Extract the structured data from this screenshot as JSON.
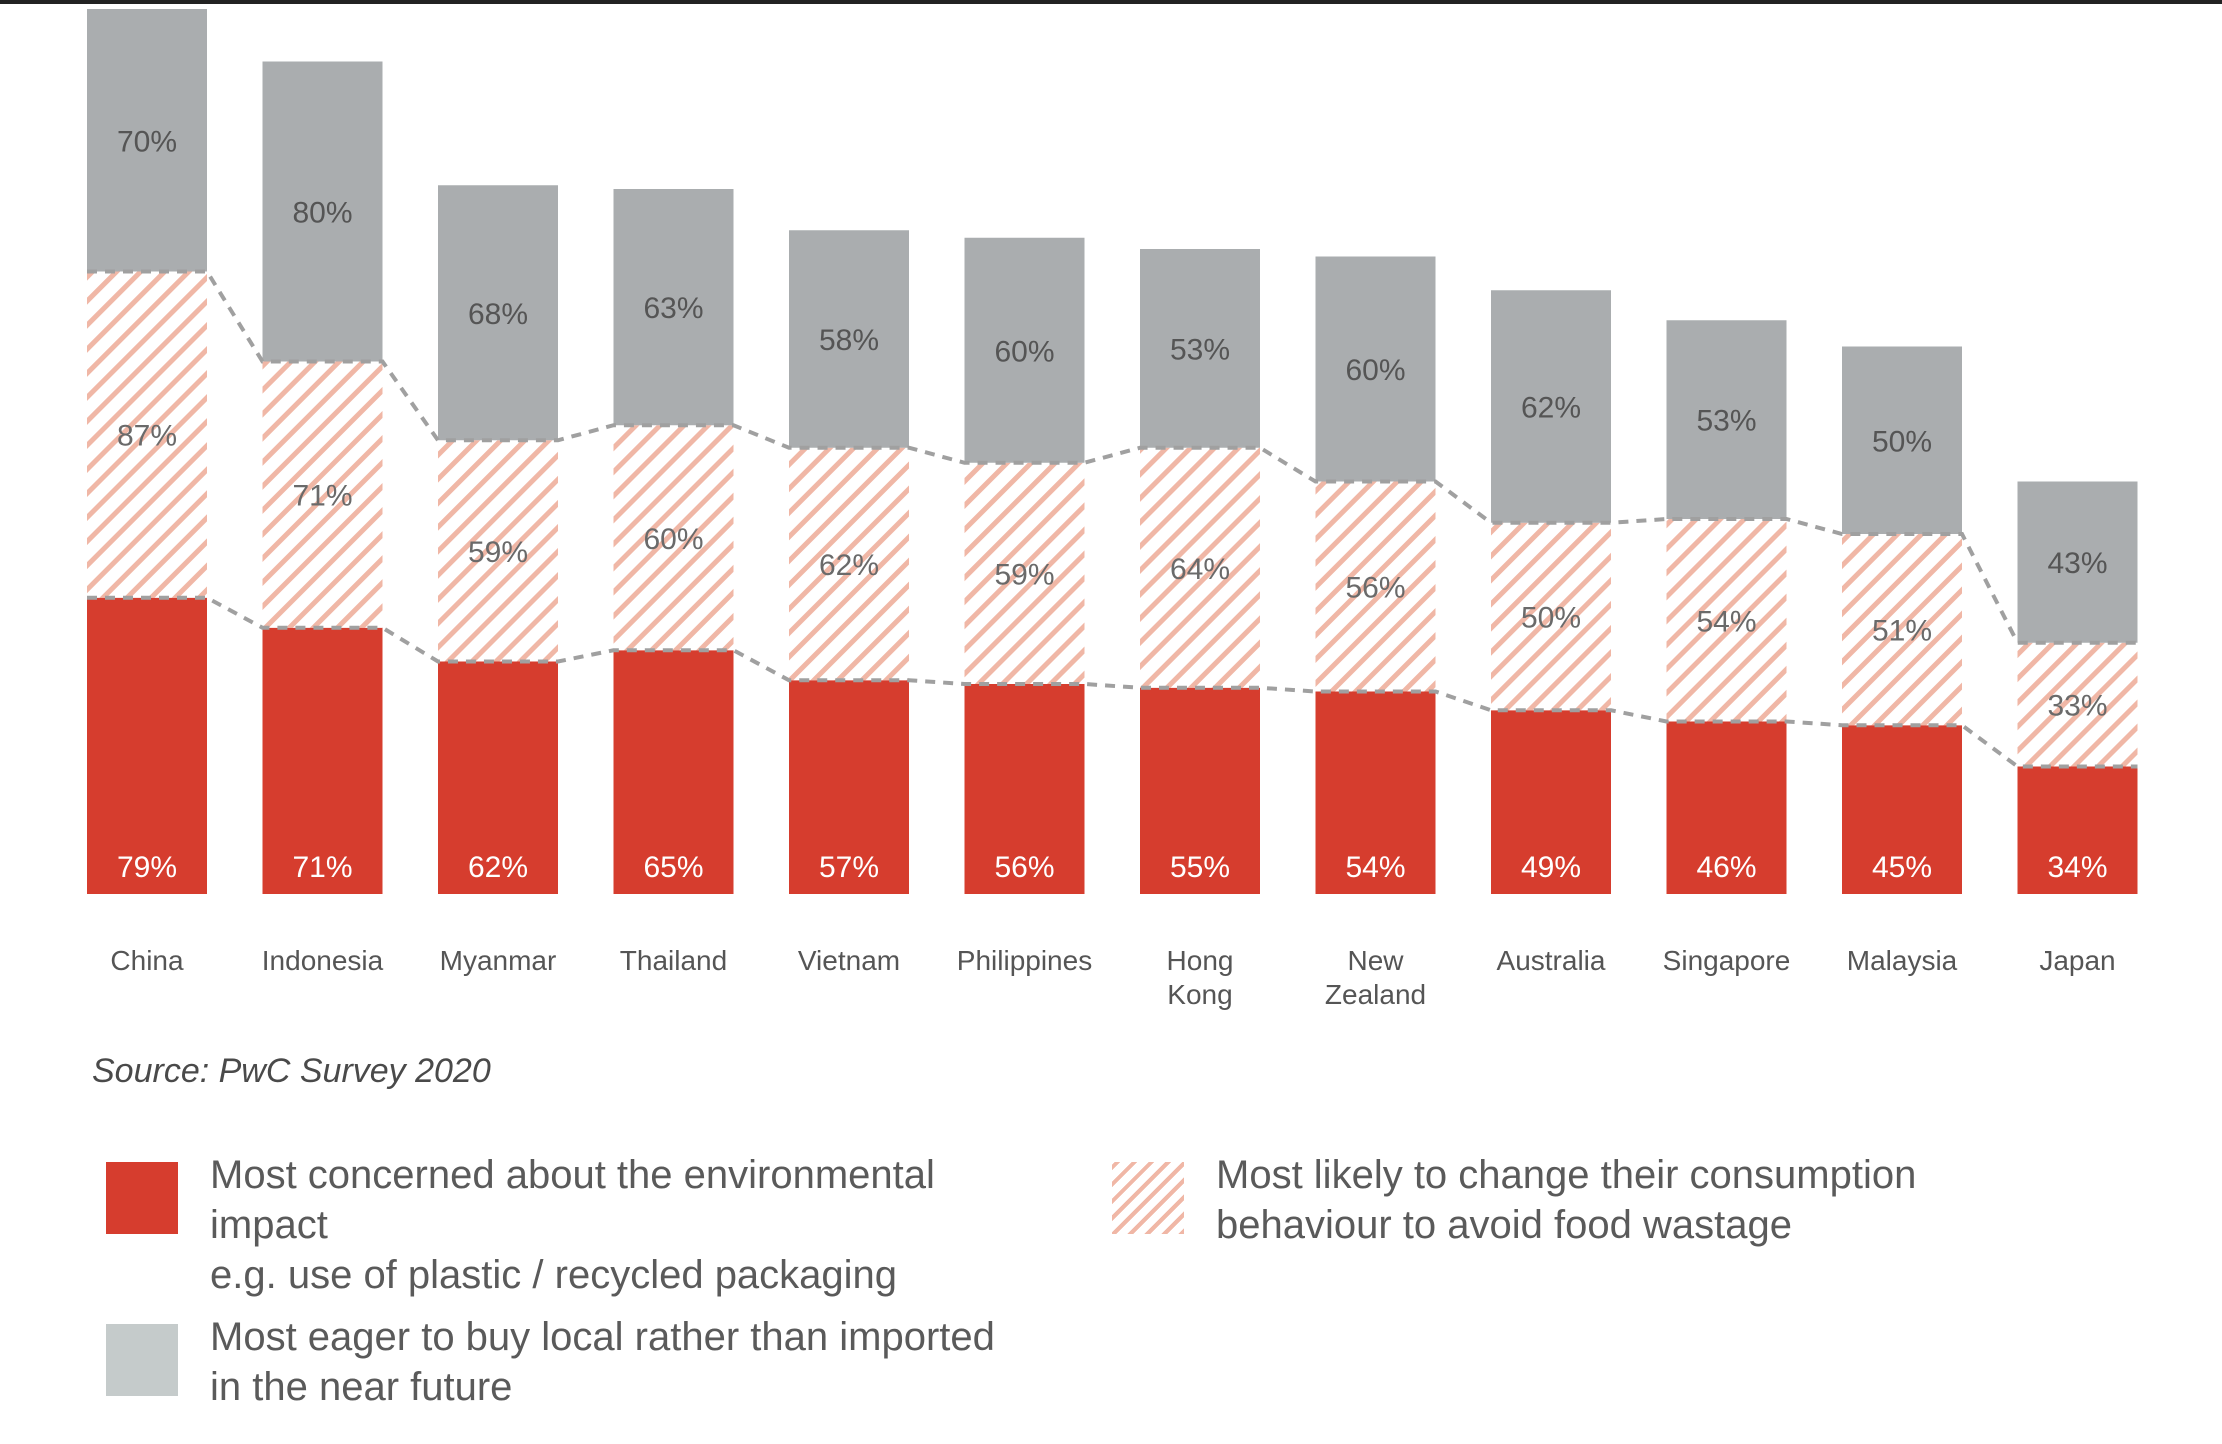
{
  "chart_data": {
    "type": "bar",
    "stacked": true,
    "categories": [
      "China",
      "Indonesia",
      "Myanmar",
      "Thailand",
      "Vietnam",
      "Philippines",
      "Hong Kong",
      "New Zealand",
      "Australia",
      "Singapore",
      "Malaysia",
      "Japan"
    ],
    "series": [
      {
        "name": "Most concerned about the environmental impact e.g. use of plastic / recycled packaging",
        "key": "concerned",
        "color": "#d63d2e",
        "pattern": "solid",
        "values": [
          79,
          71,
          62,
          65,
          57,
          56,
          55,
          54,
          49,
          46,
          45,
          34
        ]
      },
      {
        "name": "Most likely to change their consumption behaviour to avoid food wastage",
        "key": "wastage",
        "color": "#f0b7a6",
        "pattern": "hatched",
        "values": [
          87,
          71,
          59,
          60,
          62,
          59,
          64,
          56,
          50,
          54,
          51,
          33
        ]
      },
      {
        "name": "Most eager to buy local rather than imported in the near future",
        "key": "local",
        "color": "#aaadaf",
        "pattern": "solid",
        "values": [
          70,
          80,
          68,
          63,
          58,
          60,
          53,
          60,
          62,
          53,
          50,
          43
        ]
      }
    ],
    "value_labels": [
      [
        "79%",
        "71%",
        "62%",
        "65%",
        "57%",
        "56%",
        "55%",
        "54%",
        "49%",
        "46%",
        "45%",
        "34%"
      ],
      [
        "87%",
        "71%",
        "59%",
        "60%",
        "62%",
        "59%",
        "64%",
        "56%",
        "50%",
        "54%",
        "51%",
        "33%"
      ],
      [
        "70%",
        "80%",
        "68%",
        "63%",
        "58%",
        "60%",
        "53%",
        "60%",
        "62%",
        "53%",
        "50%",
        "43%"
      ]
    ],
    "category_labels": [
      [
        "China"
      ],
      [
        "Indonesia"
      ],
      [
        "Myanmar"
      ],
      [
        "Thailand"
      ],
      [
        "Vietnam"
      ],
      [
        "Philippines"
      ],
      [
        "Hong",
        "Kong"
      ],
      [
        "New",
        "Zealand"
      ],
      [
        "Australia"
      ],
      [
        "Singapore"
      ],
      [
        "Malaysia"
      ],
      [
        "Japan"
      ]
    ],
    "title": "",
    "xlabel": "",
    "ylabel": "",
    "connector_lines": "dashed"
  },
  "source": "Source: PwC Survey 2020",
  "legend": {
    "concerned": {
      "line1": "Most concerned about the environmental impact",
      "line2": "e.g. use of plastic / recycled packaging"
    },
    "wastage": {
      "line1": "Most likely to change their consumption",
      "line2": "behaviour to avoid food wastage"
    },
    "local": {
      "line1": "Most eager to buy local rather than imported",
      "line2": "in the near future"
    }
  },
  "colors": {
    "red": "#d63d2e",
    "hatch": "#f0b7a6",
    "gray": "#aaadaf",
    "legend_gray": "#c5cbcb",
    "connector": "#a0a0a0"
  }
}
